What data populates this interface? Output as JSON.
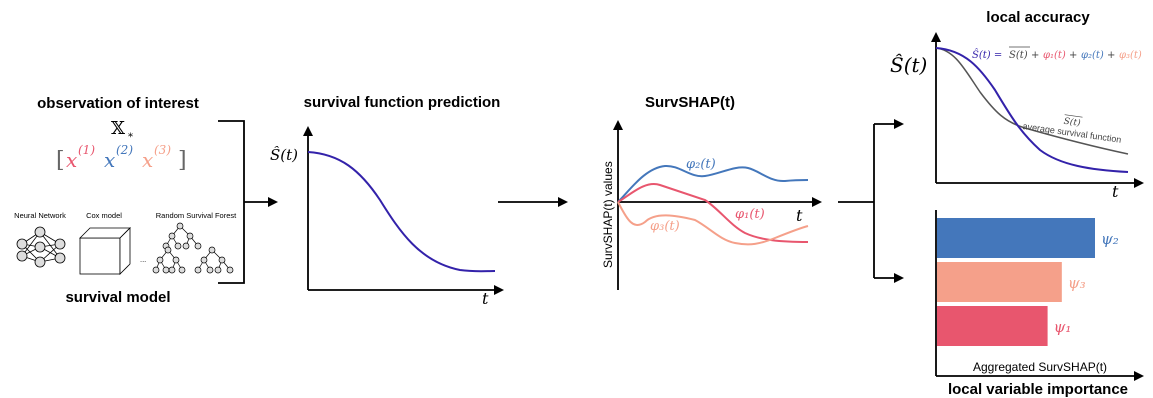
{
  "colors": {
    "blue": "#4477bb",
    "salmon": "#f5a08a",
    "red": "#e8566e",
    "purple": "#3322aa",
    "gray": "#555555",
    "black": "#000000"
  },
  "panel_observation": {
    "title": "observation of interest",
    "x_star": "𝕏",
    "x_star_sub": "*",
    "bracket_open": "[",
    "bracket_close": "]",
    "x1": "x",
    "x1_sup": "(1)",
    "x2": "x",
    "x2_sup": "(2)",
    "x3": "x",
    "x3_sup": "(3)",
    "model_labels": [
      "Neural Network",
      "Cox model",
      "Random Survival Forest"
    ],
    "ellipsis": "...",
    "model_title": "survival model"
  },
  "panel_prediction": {
    "title": "survival function prediction",
    "ylabel": "Ŝ(t)",
    "xlabel": "t"
  },
  "panel_survshap": {
    "title": "SurvSHAP(t)",
    "ylabel": "SurvSHAP(t) values",
    "xlabel": "t",
    "series": [
      {
        "label": "φ₂(t)",
        "color_key": "blue"
      },
      {
        "label": "φ₁(t)",
        "color_key": "red"
      },
      {
        "label": "φ₃(t)",
        "color_key": "salmon"
      }
    ]
  },
  "panel_accuracy": {
    "title": "local accuracy",
    "ylabel": "Ŝ(t)",
    "xlabel": "t",
    "eq_lhs": "Ŝ(t) = ",
    "eq_mean": "S(t)",
    "eq_plus": " + ",
    "eq_phi1": "φ₁(t)",
    "eq_phi2": "φ₂(t)",
    "eq_phi3": "φ₃(t)",
    "avg_label_line": "S(t)",
    "avg_label": "average survival function"
  },
  "panel_importance": {
    "title": "local variable importance",
    "xlabel": "Aggregated SurvSHAP(t)",
    "bars": [
      {
        "label": "ψ₂",
        "color_key": "blue",
        "value": 1.0
      },
      {
        "label": "ψ₃",
        "color_key": "salmon",
        "value": 0.79
      },
      {
        "label": "ψ₁",
        "color_key": "red",
        "value": 0.7
      }
    ]
  }
}
